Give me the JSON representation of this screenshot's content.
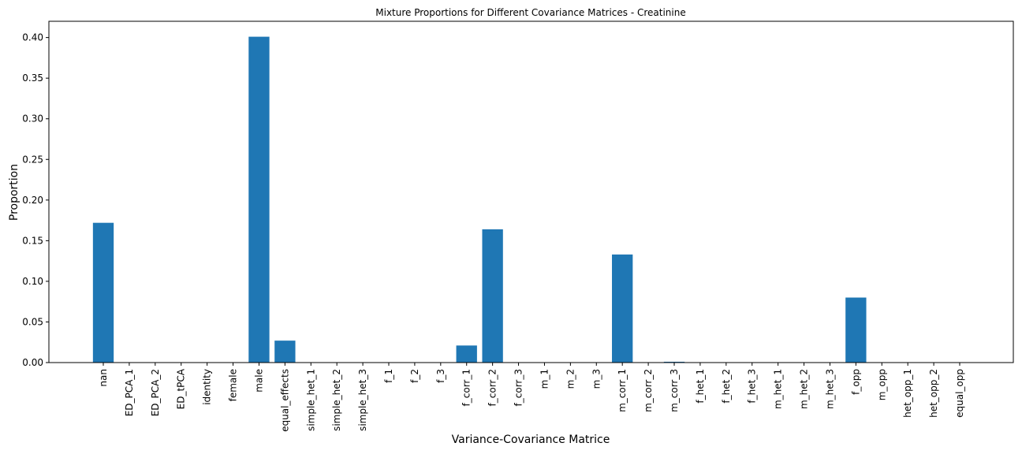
{
  "chart_data": {
    "type": "bar",
    "title": "Mixture Proportions for Different Covariance Matrices - Creatinine",
    "xlabel": "Variance-Covariance Matrice",
    "ylabel": "Proportion",
    "ylim": [
      0,
      0.42
    ],
    "yticks": [
      "0.00",
      "0.05",
      "0.10",
      "0.15",
      "0.20",
      "0.25",
      "0.30",
      "0.35",
      "0.40"
    ],
    "grid": false,
    "bar_color": "#1f77b4",
    "categories": [
      "nan",
      "ED_PCA_1",
      "ED_PCA_2",
      "ED_tPCA",
      "identity",
      "female",
      "male",
      "equal_effects",
      "simple_het_1",
      "simple_het_2",
      "simple_het_3",
      "f_1",
      "f_2",
      "f_3",
      "f_corr_1",
      "f_corr_2",
      "f_corr_3",
      "m_1",
      "m_2",
      "m_3",
      "m_corr_1",
      "m_corr_2",
      "m_corr_3",
      "f_het_1",
      "f_het_2",
      "f_het_3",
      "m_het_1",
      "m_het_2",
      "m_het_3",
      "f_opp",
      "m_opp",
      "het_opp_1",
      "het_opp_2",
      "equal_opp"
    ],
    "values": [
      0.172,
      0,
      0,
      0,
      0,
      0,
      0.401,
      0.027,
      0,
      0,
      0,
      0,
      0,
      0,
      0.021,
      0.164,
      0,
      0,
      0,
      0,
      0.133,
      0,
      0.001,
      0,
      0,
      0,
      0,
      0,
      0,
      0.08,
      0,
      0,
      0,
      0
    ]
  }
}
